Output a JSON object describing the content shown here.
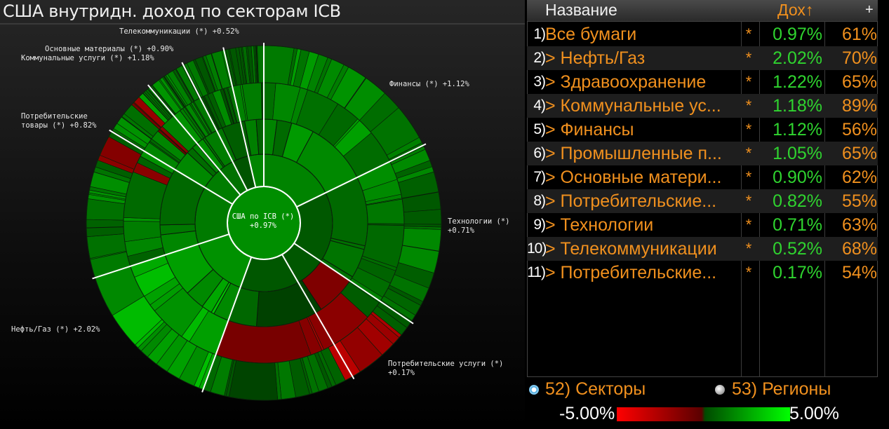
{
  "title": "США внутридн. доход по секторам ICB",
  "center": {
    "line1": "США по ICB (*)",
    "line2": "+0.97%"
  },
  "sector_labels": [
    {
      "text": "Телекоммуникации (*) +0.52%"
    },
    {
      "text": "Основные материалы (*) +0.90%"
    },
    {
      "text": "Коммунальные услуги (*) +1.18%"
    },
    {
      "text": "Потребительские"
    },
    {
      "text": "товары (*) +0.82%"
    },
    {
      "text": "Финансы (*) +1.12%"
    },
    {
      "text": "Технологии (*)"
    },
    {
      "text": "+0.71%"
    },
    {
      "text": "Нефть/Газ (*) +2.02%"
    },
    {
      "text": "Потребительские услуги (*)"
    },
    {
      "text": "+0.17%"
    }
  ],
  "table": {
    "header_name": "Название",
    "header_ret": "Дох↑",
    "header_plus": "+",
    "rows": [
      {
        "idx": "1)",
        "name": "Все бумаги",
        "star": "*",
        "ret": "0.97%",
        "pct": "61%"
      },
      {
        "idx": "2)",
        "name": "> Нефть/Газ",
        "star": "*",
        "ret": "2.02%",
        "pct": "70%"
      },
      {
        "idx": "3)",
        "name": "> Здравоохранение",
        "star": "*",
        "ret": "1.22%",
        "pct": "65%"
      },
      {
        "idx": "4)",
        "name": "> Коммунальные ус...",
        "star": "*",
        "ret": "1.18%",
        "pct": "89%"
      },
      {
        "idx": "5)",
        "name": "> Финансы",
        "star": "*",
        "ret": "1.12%",
        "pct": "56%"
      },
      {
        "idx": "6)",
        "name": "> Промышленные п...",
        "star": "*",
        "ret": "1.05%",
        "pct": "65%"
      },
      {
        "idx": "7)",
        "name": "> Основные матери...",
        "star": "*",
        "ret": "0.90%",
        "pct": "62%"
      },
      {
        "idx": "8)",
        "name": "> Потребительские...",
        "star": "*",
        "ret": "0.82%",
        "pct": "55%"
      },
      {
        "idx": "9)",
        "name": "> Технологии",
        "star": "*",
        "ret": "0.71%",
        "pct": "63%"
      },
      {
        "idx": "10)",
        "name": "> Телекоммуникации",
        "star": "*",
        "ret": "0.52%",
        "pct": "68%"
      },
      {
        "idx": "11)",
        "name": "> Потребительские...",
        "star": "*",
        "ret": "0.17%",
        "pct": "54%"
      }
    ]
  },
  "footer": {
    "sectors": "52) Секторы",
    "regions": "53) Регионы",
    "scale_min": "-5.00%",
    "scale_max": "5.00%"
  },
  "colors": {
    "orange": "#f0901e",
    "green": "#2fd42f",
    "red": "#ff0000"
  },
  "chart_data": {
    "type": "sunburst",
    "center": {
      "name": "США по ICB",
      "value": 0.97
    },
    "sectors": [
      {
        "name": "Телекоммуникации",
        "value": 0.52
      },
      {
        "name": "Основные материалы",
        "value": 0.9
      },
      {
        "name": "Коммунальные услуги",
        "value": 1.18
      },
      {
        "name": "Финансы",
        "value": 1.12
      },
      {
        "name": "Технологии",
        "value": 0.71
      },
      {
        "name": "Потребительские услуги",
        "value": 0.17
      },
      {
        "name": "Нефть/Газ",
        "value": 2.02
      },
      {
        "name": "Потребительские товары",
        "value": 0.82
      }
    ],
    "color_scale": {
      "min": -5.0,
      "max": 5.0,
      "low_color": "#ff0000",
      "high_color": "#00ff00"
    }
  }
}
